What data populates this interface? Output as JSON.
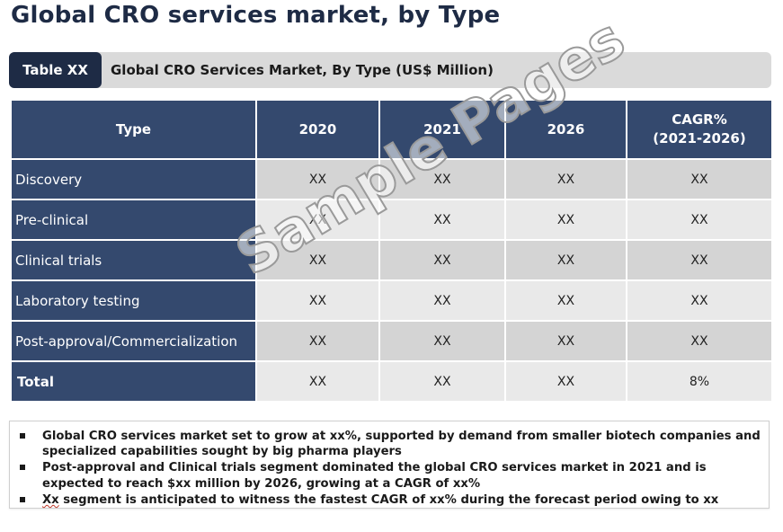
{
  "page": {
    "title": "Global CRO services market, by Type"
  },
  "caption": {
    "tag": "Table XX",
    "text": "Global CRO Services Market, By Type (US$ Million)"
  },
  "table": {
    "headers": [
      "Type",
      "2020",
      "2021",
      "2026",
      "CAGR%\n(2021-2026)"
    ],
    "header_cagr_line1": "CAGR%",
    "header_cagr_line2": "(2021-2026)",
    "rows": [
      {
        "label": "Discovery",
        "values": [
          "XX",
          "XX",
          "XX",
          "XX"
        ]
      },
      {
        "label": "Pre-clinical",
        "values": [
          "XX",
          "XX",
          "XX",
          "XX"
        ]
      },
      {
        "label": "Clinical trials",
        "values": [
          "XX",
          "XX",
          "XX",
          "XX"
        ]
      },
      {
        "label": "Laboratory testing",
        "values": [
          "XX",
          "XX",
          "XX",
          "XX"
        ]
      },
      {
        "label": "Post-approval/Commercialization",
        "values": [
          "XX",
          "XX",
          "XX",
          "XX"
        ]
      },
      {
        "label": "Total",
        "values": [
          "XX",
          "XX",
          "XX",
          "8%"
        ]
      }
    ]
  },
  "watermark": "Sample Pages",
  "notes": [
    "Global CRO services market set to grow at xx%, supported by demand from smaller biotech companies and specialized capabilities sought by big pharma players",
    "Post-approval and Clinical trials segment dominated the global CRO services market in 2021 and is expected to reach $xx million by 2026, growing at a CAGR of xx%",
    "segment is anticipated to witness the fastest CAGR of xx% during the forecast period owing to xx"
  ],
  "notes_first_word": "Xx",
  "colors": {
    "title": "#1e2b45",
    "header_fill": "#34496e",
    "tag_fill": "#1e2b45",
    "caption_fill": "#dadada",
    "row_shade_a": "#d4d4d4",
    "row_shade_b": "#e9e9e9"
  }
}
